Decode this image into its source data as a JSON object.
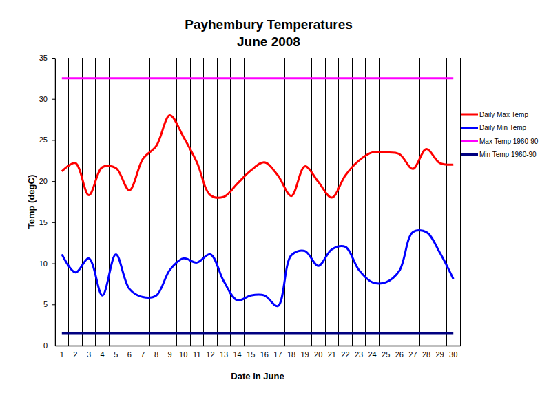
{
  "chart_data": {
    "type": "line",
    "title": "Payhembury Temperatures",
    "subtitle": "June 2008",
    "x_label": "Date in June",
    "y_label": "Temp (degC)",
    "categories": [
      "1",
      "2",
      "3",
      "4",
      "5",
      "6",
      "7",
      "8",
      "9",
      "10",
      "11",
      "12",
      "13",
      "14",
      "15",
      "16",
      "17",
      "18",
      "19",
      "20",
      "21",
      "22",
      "23",
      "24",
      "25",
      "26",
      "27",
      "28",
      "29",
      "30"
    ],
    "series": [
      {
        "name": "Daily Max Temp",
        "color": "#ff0000",
        "values": [
          21.2,
          22.2,
          18.3,
          21.7,
          21.6,
          18.9,
          22.7,
          24.3,
          28.0,
          25.4,
          22.3,
          18.3,
          18.1,
          19.7,
          21.3,
          22.3,
          20.7,
          18.2,
          21.8,
          19.9,
          18.0,
          20.7,
          22.5,
          23.5,
          23.5,
          23.3,
          21.5,
          23.9,
          22.2,
          22.0
        ]
      },
      {
        "name": "Daily Min Temp",
        "color": "#0000ff",
        "values": [
          11.1,
          8.9,
          10.6,
          6.1,
          11.1,
          6.9,
          5.9,
          6.1,
          9.2,
          10.6,
          10.1,
          11.1,
          7.8,
          5.5,
          6.1,
          6.1,
          4.8,
          11.0,
          11.5,
          9.7,
          11.7,
          12.0,
          9.2,
          7.7,
          7.7,
          9.1,
          13.8,
          13.8,
          11.3,
          8.1
        ]
      },
      {
        "name": "Max Temp 1960-90",
        "color": "#ff00ff",
        "values": [
          32.5,
          32.5,
          32.5,
          32.5,
          32.5,
          32.5,
          32.5,
          32.5,
          32.5,
          32.5,
          32.5,
          32.5,
          32.5,
          32.5,
          32.5,
          32.5,
          32.5,
          32.5,
          32.5,
          32.5,
          32.5,
          32.5,
          32.5,
          32.5,
          32.5,
          32.5,
          32.5,
          32.5,
          32.5,
          32.5
        ]
      },
      {
        "name": "Min Temp 1960-90",
        "color": "#000080",
        "values": [
          1.5,
          1.5,
          1.5,
          1.5,
          1.5,
          1.5,
          1.5,
          1.5,
          1.5,
          1.5,
          1.5,
          1.5,
          1.5,
          1.5,
          1.5,
          1.5,
          1.5,
          1.5,
          1.5,
          1.5,
          1.5,
          1.5,
          1.5,
          1.5,
          1.5,
          1.5,
          1.5,
          1.5,
          1.5,
          1.5
        ]
      }
    ],
    "ylim": [
      0,
      35
    ],
    "yticks": [
      0,
      5,
      10,
      15,
      20,
      25,
      30,
      35
    ],
    "grid": "x",
    "legend": "right",
    "line_style": "smooth"
  }
}
